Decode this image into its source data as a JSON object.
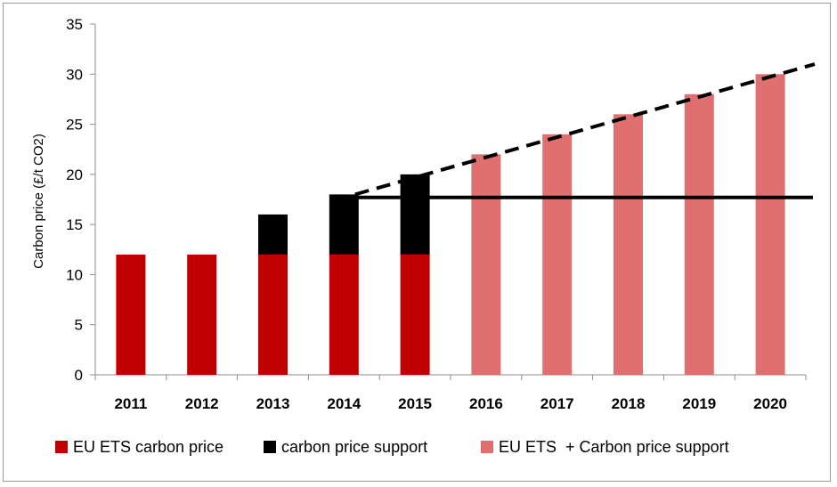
{
  "chart_data": {
    "type": "bar",
    "stacked": true,
    "title": "",
    "xlabel": "",
    "ylabel": "Carbon price (£/t CO2)",
    "ylim": [
      0,
      35
    ],
    "yticks": [
      0,
      5,
      10,
      15,
      20,
      25,
      30,
      35
    ],
    "grid": false,
    "legend_position": "bottom",
    "categories": [
      "2011",
      "2012",
      "2013",
      "2014",
      "2015",
      "2016",
      "2017",
      "2018",
      "2019",
      "2020"
    ],
    "series": [
      {
        "name": "EU ETS carbon price",
        "color": "#c00000",
        "values": [
          12,
          12,
          12,
          12,
          12,
          0,
          0,
          0,
          0,
          0
        ]
      },
      {
        "name": "carbon price support",
        "color": "#000000",
        "values": [
          0,
          0,
          4,
          6,
          8,
          0,
          0,
          0,
          0,
          0
        ]
      },
      {
        "name": "EU ETS  + Carbon price support",
        "color": "#e07070",
        "values": [
          0,
          0,
          0,
          0,
          0,
          22,
          24,
          26,
          28,
          30
        ]
      }
    ],
    "lines": [
      {
        "style": "dashed",
        "color": "#000000",
        "x_start": "2014",
        "x_end": "2020",
        "y_start": 18,
        "y_end": 31
      },
      {
        "style": "solid",
        "color": "#000000",
        "x_start": "2014",
        "x_end": "2020",
        "y_start": 17.7,
        "y_end": 17.7
      }
    ]
  }
}
